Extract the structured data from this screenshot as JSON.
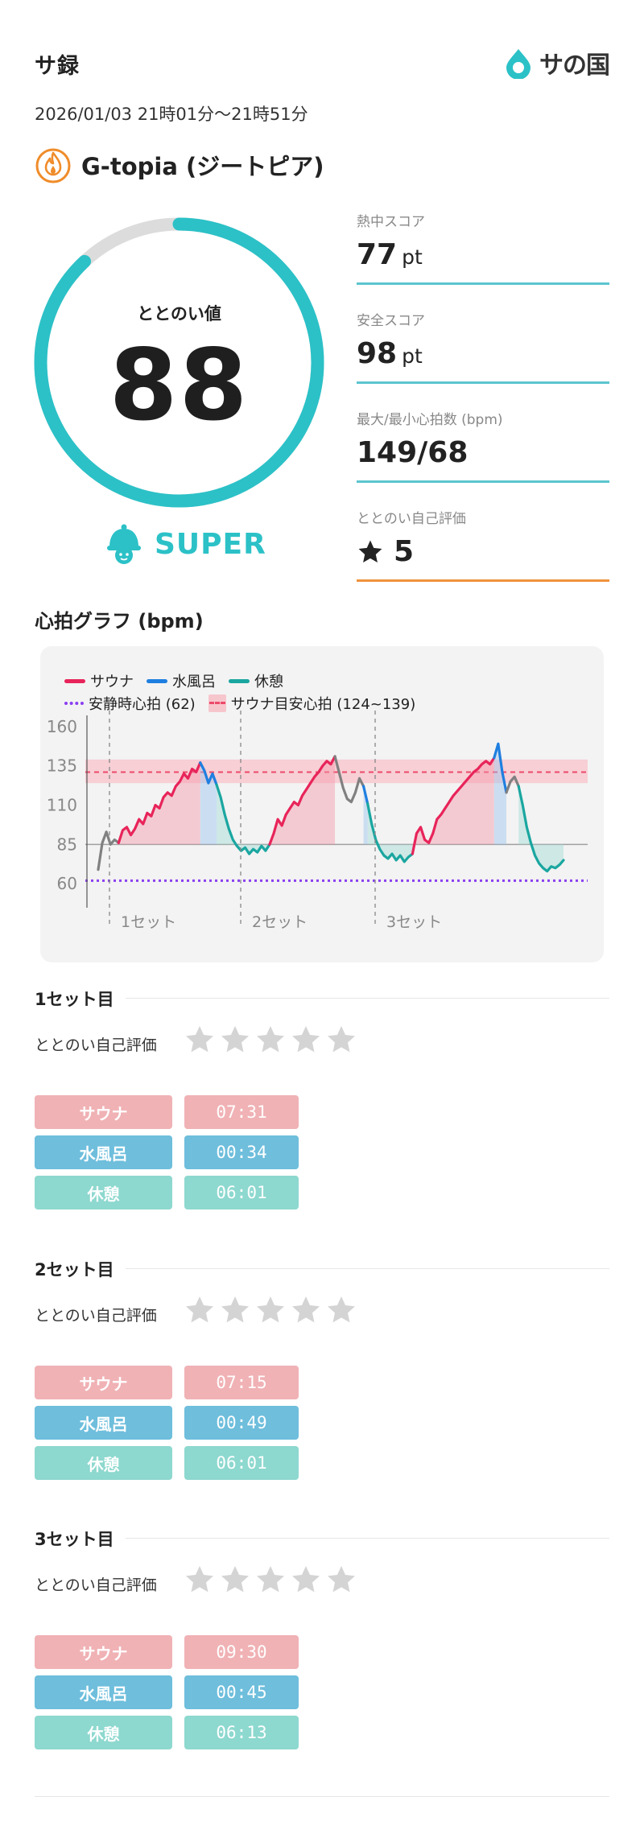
{
  "header": {
    "title": "サ録",
    "brand": "サの国",
    "brand_color": "#2bc1c7"
  },
  "session": {
    "datetime": "2026/01/03 21時01分〜21時51分",
    "facility_name": "G-topia (ジートピア)",
    "facility_icon": "flame-icon",
    "facility_icon_color": "#f08c2a"
  },
  "totonoi": {
    "label": "ととのい値",
    "value": "88",
    "fraction": 0.88,
    "ring_color": "#2bc1c7",
    "track_color": "#dcdcdc",
    "grade": "SUPER",
    "grade_icon": "sauna-hat-mascot-icon"
  },
  "scores": [
    {
      "label": "熱中スコア",
      "value": "77",
      "unit": "pt"
    },
    {
      "label": "安全スコア",
      "value": "98",
      "unit": "pt"
    },
    {
      "label": "最大/最小心拍数 (bpm)",
      "value": "149/68",
      "unit": ""
    },
    {
      "label": "ととのい自己評価",
      "value": "5",
      "unit": "",
      "icon": "star-icon"
    }
  ],
  "graph": {
    "title": "心拍グラフ (bpm)",
    "legend": {
      "sauna": "サウナ",
      "water": "水風呂",
      "rest": "休憩",
      "resting": "安静時心拍 (62)",
      "target": "サウナ目安心拍 (124~139)"
    }
  },
  "chart_data": {
    "type": "line",
    "ylim": [
      55,
      165
    ],
    "yticks": [
      "160",
      "135",
      "110",
      "85",
      "60"
    ],
    "set_labels": [
      "1セット",
      "2セット",
      "3セット"
    ],
    "resting_hr": 62,
    "target_band": [
      124,
      139
    ],
    "target_line": 131,
    "baseline": 85,
    "colors": {
      "sauna": "#e8245a",
      "water": "#1f7fe0",
      "rest": "#1aa6a0",
      "transition": "#808080"
    },
    "series": [
      {
        "phase": "transition",
        "values": [
          69,
          86,
          93,
          85,
          88,
          86
        ]
      },
      {
        "phase": "sauna",
        "values": [
          86,
          94,
          96,
          91,
          95,
          101,
          98,
          105,
          103,
          110,
          108,
          115,
          118,
          116,
          122,
          125,
          130,
          127,
          133,
          131,
          137
        ]
      },
      {
        "phase": "water",
        "values": [
          137,
          132,
          124,
          130,
          123
        ]
      },
      {
        "phase": "rest",
        "values": [
          123,
          115,
          104,
          95,
          88,
          84,
          81,
          83,
          79,
          82,
          80,
          84,
          81,
          85
        ]
      },
      {
        "phase": "sauna",
        "values": [
          85,
          92,
          101,
          97,
          104,
          108,
          112,
          110,
          116,
          120,
          124,
          128,
          131,
          135,
          138,
          136,
          141
        ]
      },
      {
        "phase": "transition",
        "values": [
          141,
          131,
          121,
          114,
          112,
          118,
          127,
          122
        ]
      },
      {
        "phase": "water",
        "values": [
          122,
          111
        ]
      },
      {
        "phase": "rest",
        "values": [
          111,
          98,
          88,
          82,
          78,
          76,
          79,
          75,
          78,
          74,
          77,
          79
        ]
      },
      {
        "phase": "sauna",
        "values": [
          79,
          92,
          96,
          88,
          86,
          92,
          101,
          104,
          108,
          112,
          116,
          119,
          122,
          125,
          128,
          131,
          133,
          136,
          138,
          136,
          140
        ]
      },
      {
        "phase": "water",
        "values": [
          140,
          149,
          131,
          118
        ]
      },
      {
        "phase": "transition",
        "values": [
          118,
          125,
          128,
          122
        ]
      },
      {
        "phase": "rest",
        "values": [
          122,
          110,
          96,
          86,
          78,
          73,
          70,
          68,
          71,
          70,
          72,
          75
        ]
      }
    ]
  },
  "rating_label": "ととのい自己評価",
  "sets": [
    {
      "title": "1セット目",
      "rating": 0,
      "sauna": "07:31",
      "water": "00:34",
      "rest": "06:01"
    },
    {
      "title": "2セット目",
      "rating": 0,
      "sauna": "07:15",
      "water": "00:49",
      "rest": "06:01"
    },
    {
      "title": "3セット目",
      "rating": 0,
      "sauna": "09:30",
      "water": "00:45",
      "rest": "06:13"
    }
  ],
  "phase_labels": {
    "sauna": "サウナ",
    "water": "水風呂",
    "rest": "休憩"
  }
}
